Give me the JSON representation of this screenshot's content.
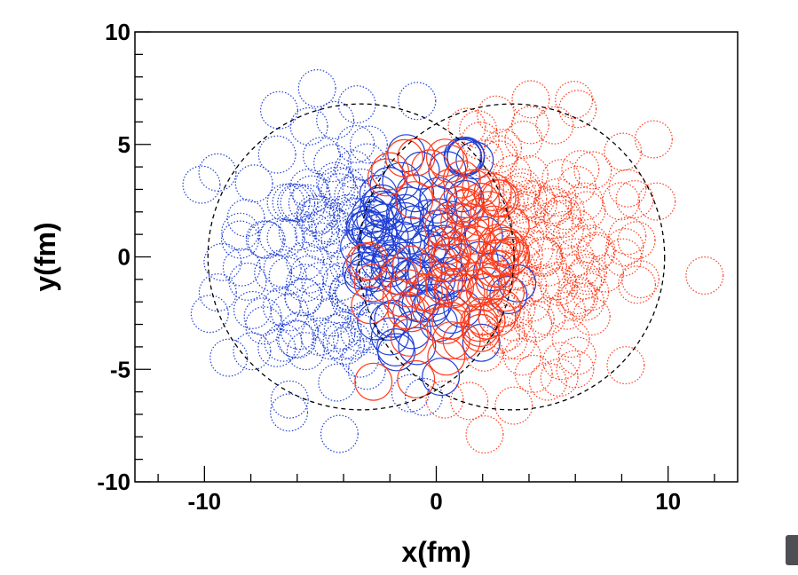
{
  "chart_data": {
    "type": "scatter",
    "xlabel": "x(fm)",
    "ylabel": "y(fm)",
    "xlim": [
      -13,
      13
    ],
    "ylim": [
      -10,
      10
    ],
    "x_ticks": [
      -10,
      0,
      10
    ],
    "y_ticks": [
      -10,
      -5,
      0,
      5,
      10
    ],
    "grid": false,
    "legend": "none",
    "nucleon_radius_fm": 0.8,
    "nuclei": [
      {
        "center_x": -3.25,
        "center_y": 0,
        "radius": 6.6,
        "color": "#000000",
        "line": "dashed"
      },
      {
        "center_x": 3.25,
        "center_y": 0,
        "radius": 6.6,
        "color": "#000000",
        "line": "dashed"
      }
    ],
    "series": [
      {
        "color": "#1f3fd6",
        "line": "dotted",
        "group": "left nucleus, spectator"
      },
      {
        "color": "#1f3fd6",
        "line": "solid",
        "group": "left nucleus, participant"
      },
      {
        "color": "#ff3a1a",
        "line": "solid",
        "group": "right nucleus, participant"
      },
      {
        "color": "#ff3a1a",
        "line": "dotted",
        "group": "right nucleus, spectator"
      }
    ]
  },
  "ui": {
    "corner_button_icon": "panel-tab-icon"
  }
}
